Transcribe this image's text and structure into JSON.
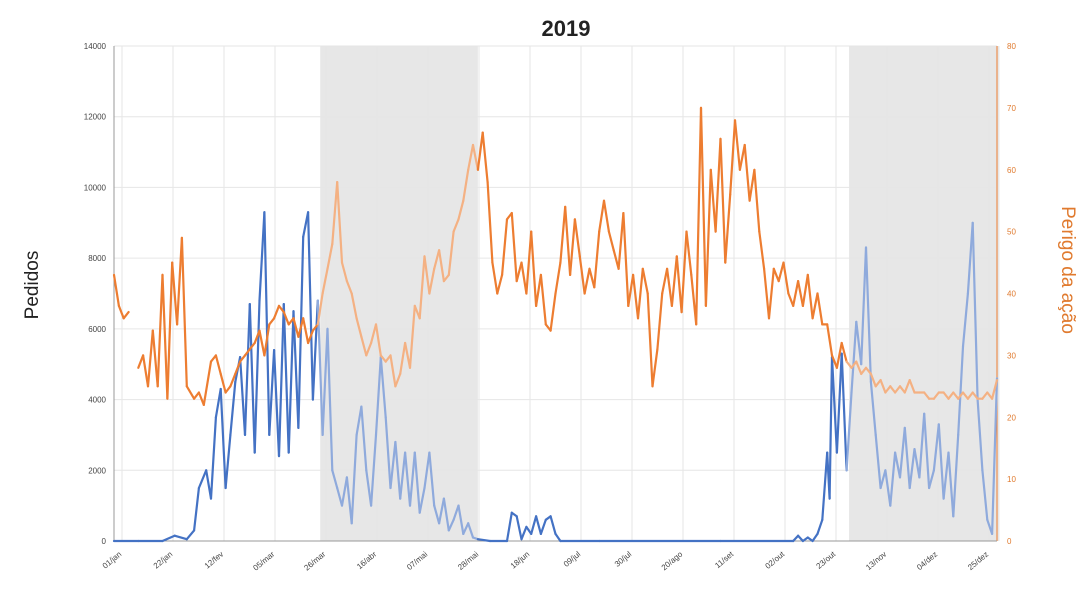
{
  "chart_data": {
    "type": "line",
    "title": "2019",
    "ylabel": "Pedidos",
    "y2label": "Perigo da ação",
    "ylim": [
      0,
      14000
    ],
    "y2lim": [
      0,
      80
    ],
    "grid": true,
    "y_ticks": [
      "0",
      "2000",
      "4000",
      "6000",
      "8000",
      "10000",
      "12000",
      "14000"
    ],
    "y2_ticks": [
      "0",
      "10",
      "20",
      "30",
      "40",
      "50",
      "60",
      "70",
      "80"
    ],
    "x_ticks": [
      "01/jan",
      "22/jan",
      "12/fev",
      "05/mar",
      "26/mar",
      "16/abr",
      "07/mai",
      "28/mai",
      "18/jun",
      "09/jul",
      "30/jul",
      "20/ago",
      "11/set",
      "02/out",
      "23/out",
      "13/nov",
      "04/dez",
      "25/dez"
    ],
    "shaded_periods": [
      {
        "start_day": 85,
        "end_day": 150
      },
      {
        "start_day": 303,
        "end_day": 365
      }
    ],
    "colors": {
      "pedidos": "#4472c4",
      "pedidos_light": "#8faadc",
      "perigo": "#ed7d31",
      "perigo_light": "#f4b183",
      "shade": "#e7e7e7",
      "grid": "#e6e6e6"
    },
    "series": [
      {
        "axis": "left",
        "points": [
          [
            0,
            0
          ],
          [
            10,
            0
          ],
          [
            20,
            0
          ],
          [
            25,
            150
          ],
          [
            30,
            50
          ],
          [
            33,
            300
          ],
          [
            35,
            1500
          ],
          [
            38,
            2000
          ],
          [
            40,
            1200
          ],
          [
            42,
            3500
          ],
          [
            44,
            4300
          ],
          [
            46,
            1500
          ],
          [
            48,
            3000
          ],
          [
            50,
            4500
          ],
          [
            52,
            5200
          ],
          [
            54,
            3000
          ],
          [
            56,
            6700
          ],
          [
            58,
            2500
          ],
          [
            60,
            6800
          ],
          [
            62,
            9300
          ],
          [
            64,
            3000
          ],
          [
            66,
            5400
          ],
          [
            68,
            2400
          ],
          [
            70,
            6700
          ],
          [
            72,
            2500
          ],
          [
            74,
            6500
          ],
          [
            76,
            3200
          ],
          [
            78,
            8600
          ],
          [
            80,
            9300
          ],
          [
            82,
            4000
          ],
          [
            84,
            6800
          ],
          [
            86,
            3000
          ],
          [
            88,
            6000
          ],
          [
            90,
            2000
          ],
          [
            92,
            1500
          ],
          [
            94,
            1000
          ],
          [
            96,
            1800
          ],
          [
            98,
            500
          ],
          [
            100,
            3000
          ],
          [
            102,
            3800
          ],
          [
            104,
            2000
          ],
          [
            106,
            1000
          ],
          [
            108,
            3000
          ],
          [
            110,
            5200
          ],
          [
            112,
            3500
          ],
          [
            114,
            1500
          ],
          [
            116,
            2800
          ],
          [
            118,
            1200
          ],
          [
            120,
            2500
          ],
          [
            122,
            1000
          ],
          [
            124,
            2500
          ],
          [
            126,
            800
          ],
          [
            128,
            1500
          ],
          [
            130,
            2500
          ],
          [
            132,
            1000
          ],
          [
            134,
            500
          ],
          [
            136,
            1200
          ],
          [
            138,
            300
          ],
          [
            140,
            600
          ],
          [
            142,
            1000
          ],
          [
            144,
            200
          ],
          [
            146,
            500
          ],
          [
            148,
            100
          ],
          [
            150,
            50
          ],
          [
            155,
            0
          ],
          [
            162,
            0
          ],
          [
            164,
            800
          ],
          [
            166,
            700
          ],
          [
            168,
            50
          ],
          [
            170,
            400
          ],
          [
            172,
            200
          ],
          [
            174,
            700
          ],
          [
            176,
            200
          ],
          [
            178,
            600
          ],
          [
            180,
            700
          ],
          [
            182,
            200
          ],
          [
            184,
            0
          ],
          [
            200,
            0
          ],
          [
            250,
            0
          ],
          [
            280,
            0
          ],
          [
            282,
            150
          ],
          [
            284,
            0
          ],
          [
            286,
            100
          ],
          [
            288,
            0
          ],
          [
            290,
            200
          ],
          [
            292,
            600
          ],
          [
            294,
            2500
          ],
          [
            295,
            1200
          ],
          [
            296,
            5200
          ],
          [
            298,
            2500
          ],
          [
            300,
            5300
          ],
          [
            302,
            2000
          ],
          [
            304,
            4200
          ],
          [
            306,
            6200
          ],
          [
            308,
            5000
          ],
          [
            310,
            8300
          ],
          [
            312,
            4500
          ],
          [
            314,
            3000
          ],
          [
            316,
            1500
          ],
          [
            318,
            2000
          ],
          [
            320,
            1000
          ],
          [
            322,
            2500
          ],
          [
            324,
            1800
          ],
          [
            326,
            3200
          ],
          [
            328,
            1500
          ],
          [
            330,
            2600
          ],
          [
            332,
            1800
          ],
          [
            334,
            3600
          ],
          [
            336,
            1500
          ],
          [
            338,
            2000
          ],
          [
            340,
            3300
          ],
          [
            342,
            1200
          ],
          [
            344,
            2500
          ],
          [
            346,
            700
          ],
          [
            348,
            3000
          ],
          [
            350,
            5500
          ],
          [
            352,
            7000
          ],
          [
            354,
            9000
          ],
          [
            356,
            4000
          ],
          [
            358,
            2000
          ],
          [
            360,
            600
          ],
          [
            362,
            200
          ],
          [
            364,
            4600
          ]
        ]
      },
      {
        "axis": "right",
        "points": [
          [
            0,
            43
          ],
          [
            2,
            38
          ],
          [
            4,
            36
          ],
          [
            6,
            37
          ],
          [
            10,
            28
          ],
          [
            12,
            30
          ],
          [
            14,
            25
          ],
          [
            16,
            34
          ],
          [
            18,
            25
          ],
          [
            20,
            43
          ],
          [
            22,
            23
          ],
          [
            24,
            45
          ],
          [
            26,
            35
          ],
          [
            28,
            49
          ],
          [
            30,
            25
          ],
          [
            33,
            23
          ],
          [
            35,
            24
          ],
          [
            37,
            22
          ],
          [
            40,
            29
          ],
          [
            42,
            30
          ],
          [
            44,
            27
          ],
          [
            46,
            24
          ],
          [
            48,
            25
          ],
          [
            50,
            27
          ],
          [
            52,
            29
          ],
          [
            54,
            30
          ],
          [
            56,
            31
          ],
          [
            58,
            32
          ],
          [
            60,
            34
          ],
          [
            62,
            30
          ],
          [
            64,
            35
          ],
          [
            66,
            36
          ],
          [
            68,
            38
          ],
          [
            70,
            37
          ],
          [
            72,
            35
          ],
          [
            74,
            36
          ],
          [
            76,
            33
          ],
          [
            78,
            36
          ],
          [
            80,
            32
          ],
          [
            82,
            34
          ],
          [
            84,
            35
          ],
          [
            86,
            40
          ],
          [
            88,
            44
          ],
          [
            90,
            48
          ],
          [
            92,
            58
          ],
          [
            94,
            45
          ],
          [
            96,
            42
          ],
          [
            98,
            40
          ],
          [
            100,
            36
          ],
          [
            102,
            33
          ],
          [
            104,
            30
          ],
          [
            106,
            32
          ],
          [
            108,
            35
          ],
          [
            110,
            30
          ],
          [
            112,
            29
          ],
          [
            114,
            30
          ],
          [
            116,
            25
          ],
          [
            118,
            27
          ],
          [
            120,
            32
          ],
          [
            122,
            28
          ],
          [
            124,
            38
          ],
          [
            126,
            36
          ],
          [
            128,
            46
          ],
          [
            130,
            40
          ],
          [
            132,
            44
          ],
          [
            134,
            47
          ],
          [
            136,
            42
          ],
          [
            138,
            43
          ],
          [
            140,
            50
          ],
          [
            142,
            52
          ],
          [
            144,
            55
          ],
          [
            146,
            60
          ],
          [
            148,
            64
          ],
          [
            150,
            60
          ],
          [
            152,
            66
          ],
          [
            154,
            58
          ],
          [
            156,
            45
          ],
          [
            158,
            40
          ],
          [
            160,
            43
          ],
          [
            162,
            52
          ],
          [
            164,
            53
          ],
          [
            166,
            42
          ],
          [
            168,
            45
          ],
          [
            170,
            40
          ],
          [
            172,
            50
          ],
          [
            174,
            38
          ],
          [
            176,
            43
          ],
          [
            178,
            35
          ],
          [
            180,
            34
          ],
          [
            182,
            40
          ],
          [
            184,
            45
          ],
          [
            186,
            54
          ],
          [
            188,
            43
          ],
          [
            190,
            52
          ],
          [
            192,
            46
          ],
          [
            194,
            40
          ],
          [
            196,
            44
          ],
          [
            198,
            41
          ],
          [
            200,
            50
          ],
          [
            202,
            55
          ],
          [
            204,
            50
          ],
          [
            206,
            47
          ],
          [
            208,
            44
          ],
          [
            210,
            53
          ],
          [
            212,
            38
          ],
          [
            214,
            43
          ],
          [
            216,
            36
          ],
          [
            218,
            44
          ],
          [
            220,
            40
          ],
          [
            222,
            25
          ],
          [
            224,
            31
          ],
          [
            226,
            40
          ],
          [
            228,
            44
          ],
          [
            230,
            38
          ],
          [
            232,
            46
          ],
          [
            234,
            37
          ],
          [
            236,
            50
          ],
          [
            238,
            43
          ],
          [
            240,
            35
          ],
          [
            242,
            70
          ],
          [
            244,
            38
          ],
          [
            246,
            60
          ],
          [
            248,
            50
          ],
          [
            250,
            65
          ],
          [
            252,
            45
          ],
          [
            254,
            56
          ],
          [
            256,
            68
          ],
          [
            258,
            60
          ],
          [
            260,
            64
          ],
          [
            262,
            55
          ],
          [
            264,
            60
          ],
          [
            266,
            50
          ],
          [
            268,
            44
          ],
          [
            270,
            36
          ],
          [
            272,
            44
          ],
          [
            274,
            42
          ],
          [
            276,
            45
          ],
          [
            278,
            40
          ],
          [
            280,
            38
          ],
          [
            282,
            42
          ],
          [
            284,
            38
          ],
          [
            286,
            43
          ],
          [
            288,
            36
          ],
          [
            290,
            40
          ],
          [
            292,
            35
          ],
          [
            294,
            35
          ],
          [
            296,
            30
          ],
          [
            298,
            28
          ],
          [
            300,
            32
          ],
          [
            302,
            29
          ],
          [
            304,
            28
          ],
          [
            306,
            29
          ],
          [
            308,
            27
          ],
          [
            310,
            28
          ],
          [
            312,
            27
          ],
          [
            314,
            25
          ],
          [
            316,
            26
          ],
          [
            318,
            24
          ],
          [
            320,
            25
          ],
          [
            322,
            24
          ],
          [
            324,
            25
          ],
          [
            326,
            24
          ],
          [
            328,
            26
          ],
          [
            330,
            24
          ],
          [
            332,
            24
          ],
          [
            334,
            24
          ],
          [
            336,
            23
          ],
          [
            338,
            23
          ],
          [
            340,
            24
          ],
          [
            342,
            24
          ],
          [
            344,
            23
          ],
          [
            346,
            24
          ],
          [
            348,
            23
          ],
          [
            350,
            24
          ],
          [
            352,
            23
          ],
          [
            354,
            24
          ],
          [
            356,
            23
          ],
          [
            358,
            23
          ],
          [
            360,
            24
          ],
          [
            362,
            23
          ],
          [
            364,
            26
          ]
        ],
        "gaps_after_day": [
          6
        ]
      }
    ]
  }
}
